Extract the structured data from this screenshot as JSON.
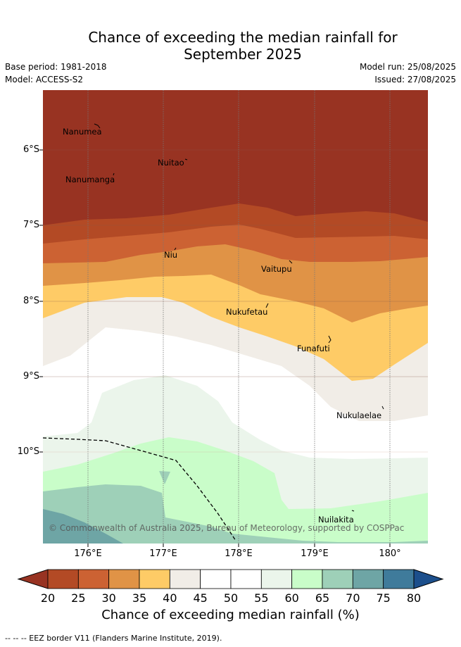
{
  "title_line1": "Chance of exceeding the median rainfall for",
  "title_line2": "September 2025",
  "base_period": "Base period: 1981-2018",
  "model": "Model: ACCESS-S2",
  "model_run": "Model run: 25/08/2025",
  "issued": "Issued: 27/08/2025",
  "copyright": "© Commonwealth of Australia 2025, Bureau of Meteorology, supported by COSPPac",
  "lat_labels": [
    "6°S",
    "7°S",
    "8°S",
    "9°S",
    "10°S"
  ],
  "lon_labels": [
    "176°E",
    "177°E",
    "178°E",
    "179°E",
    "180°"
  ],
  "places": [
    "Nanumea",
    "Nuitao",
    "Nanumanga",
    "Niu",
    "Vaitupu",
    "Nukufetau",
    "Funafuti",
    "Nukulaelae",
    "Nuilakita"
  ],
  "colorbar": {
    "title": "Chance of exceeding median rainfall (%)",
    "ticks": [
      "20",
      "25",
      "30",
      "35",
      "40",
      "45",
      "50",
      "55",
      "60",
      "65",
      "70",
      "75",
      "80"
    ],
    "colors": [
      "#b34a25",
      "#cc6233",
      "#e09346",
      "#fecb66",
      "#f1ede7",
      "#ffffff",
      "#ffffff",
      "#ebf5eb",
      "#c9fdc9",
      "#9ed0b8",
      "#6ea5a5",
      "#3f7b9b"
    ],
    "under_color": "#983322",
    "over_color": "#1c4f8c"
  },
  "footnote": "-- -- -- EEZ border V11 (Flanders Marine Institute, 2019)."
}
